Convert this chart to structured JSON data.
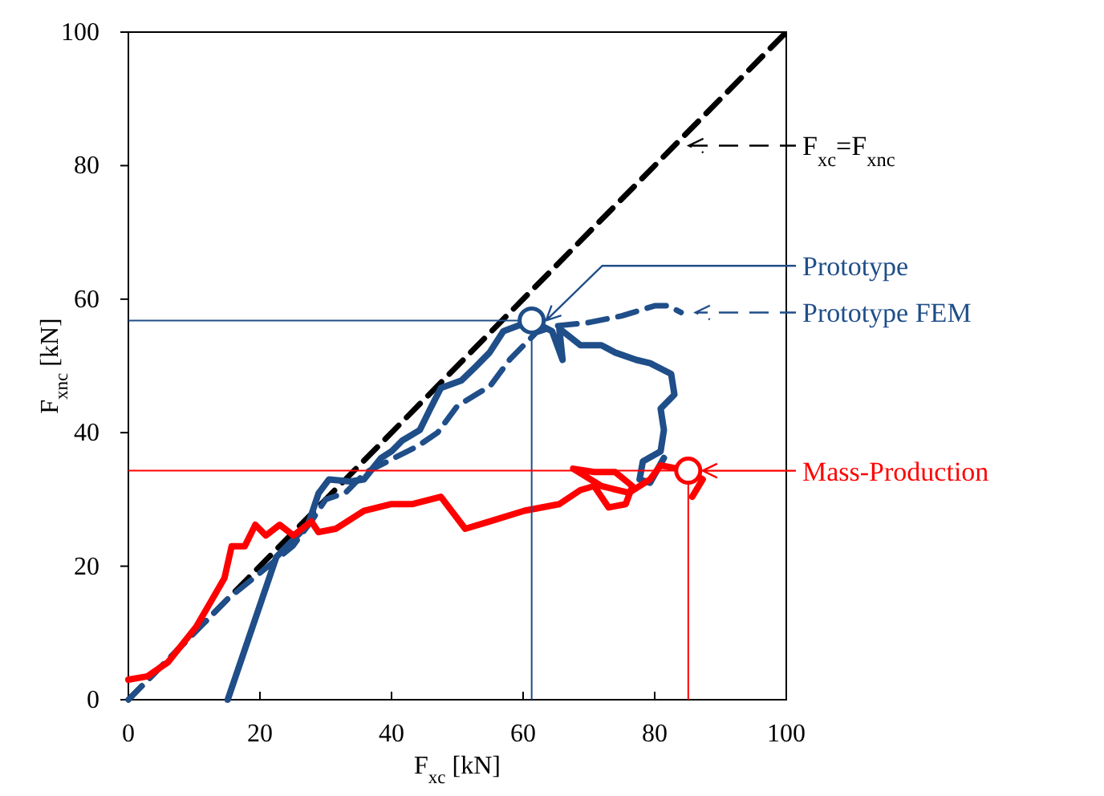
{
  "chart_data": {
    "type": "line",
    "xlabel": "F$_{xc}$ [kN]",
    "ylabel": "F$_{xnc}$ [kN]",
    "xlim": [
      0,
      100
    ],
    "ylim": [
      0,
      100
    ],
    "xticks": [
      0,
      20,
      40,
      60,
      80,
      100
    ],
    "yticks": [
      0,
      20,
      40,
      60,
      80,
      100
    ],
    "grid": false,
    "legend": "right",
    "series": [
      {
        "name": "F$_{xc}$=F$_{xnc}$",
        "color": "#000000",
        "line_style": "dashed",
        "x": [
          0,
          100
        ],
        "values": [
          0,
          100
        ]
      },
      {
        "color": "#1f4e89",
        "line_style": "solid",
        "x": [
          15.1,
          22.5,
          27.3,
          28.9,
          30.5,
          33.7,
          35.8,
          38.4,
          40,
          41.6,
          44.3,
          45.9,
          47.5,
          50.6,
          52.8,
          54.9,
          57,
          61.3,
          64.4,
          66,
          65.5,
          68.7,
          71.9,
          74,
          77.2,
          79.3,
          82.5,
          83,
          80.9,
          81.4,
          80.9,
          78.2,
          77.7,
          79.3,
          81.4
        ],
        "values": [
          0,
          21.4,
          26.2,
          30.9,
          33,
          32.7,
          33,
          36.2,
          37.2,
          38.8,
          40.4,
          43.6,
          46.7,
          47.8,
          49.9,
          52,
          55.2,
          56.8,
          55.2,
          50.9,
          55.6,
          53.1,
          53.1,
          52,
          50.9,
          50.4,
          48.8,
          45.7,
          43.6,
          40.4,
          37.2,
          35.7,
          33,
          32.5,
          36.2
        ]
      },
      {
        "name": "Prototype FEM",
        "color": "#1f4e89",
        "line_style": "dashed",
        "x": [
          0,
          5,
          10,
          15,
          20,
          25,
          28,
          30,
          33,
          36,
          40,
          44,
          47,
          50,
          55,
          58,
          62,
          65,
          70,
          75,
          80,
          82,
          84
        ],
        "values": [
          0,
          5,
          10,
          15,
          19,
          23,
          27,
          30,
          31,
          34,
          36,
          38,
          40,
          44,
          47,
          51,
          55,
          56,
          56.5,
          57.5,
          59,
          59,
          58
        ]
      },
      {
        "color": "#ff0000",
        "line_style": "solid",
        "x": [
          0,
          2.9,
          6,
          10.3,
          14.6,
          15.7,
          17.7,
          19.3,
          20.9,
          23,
          25.1,
          27.8,
          28.9,
          31.5,
          35.8,
          40,
          43.2,
          47.5,
          51.2,
          54.9,
          60.2,
          65.5,
          68.7,
          70.8,
          73,
          75.6,
          76.6,
          74,
          70.8,
          67.6,
          71.9,
          76.1,
          79.3,
          80.9,
          85.1,
          87.3,
          85.7
        ],
        "values": [
          3,
          3.5,
          5.6,
          10.9,
          18.2,
          23,
          23,
          26.2,
          24.6,
          26.2,
          24.6,
          26.7,
          25.1,
          25.6,
          28.3,
          29.3,
          29.3,
          30.4,
          25.6,
          26.7,
          28.3,
          29.3,
          31.4,
          32,
          28.8,
          29.3,
          32,
          34.1,
          34.1,
          34.6,
          32,
          31,
          33,
          35.1,
          34.3,
          33,
          30.4
        ]
      },
      {
        "name": "Prototype",
        "type": "scatter",
        "marker": "circle",
        "color": "#1f4e89",
        "x": [
          61.3
        ],
        "values": [
          56.8
        ],
        "errors": [
          [
            0,
            56.8
          ]
        ],
        "xerrors": [
          [
            0,
            61.3
          ]
        ]
      },
      {
        "name": "Mass-Production",
        "type": "scatter",
        "marker": "circle",
        "color": "#ff0000",
        "x": [
          85.1
        ],
        "values": [
          34.3
        ],
        "errors": [
          [
            0,
            34.3
          ]
        ],
        "xerrors": [
          [
            0,
            85.1
          ]
        ]
      }
    ]
  }
}
